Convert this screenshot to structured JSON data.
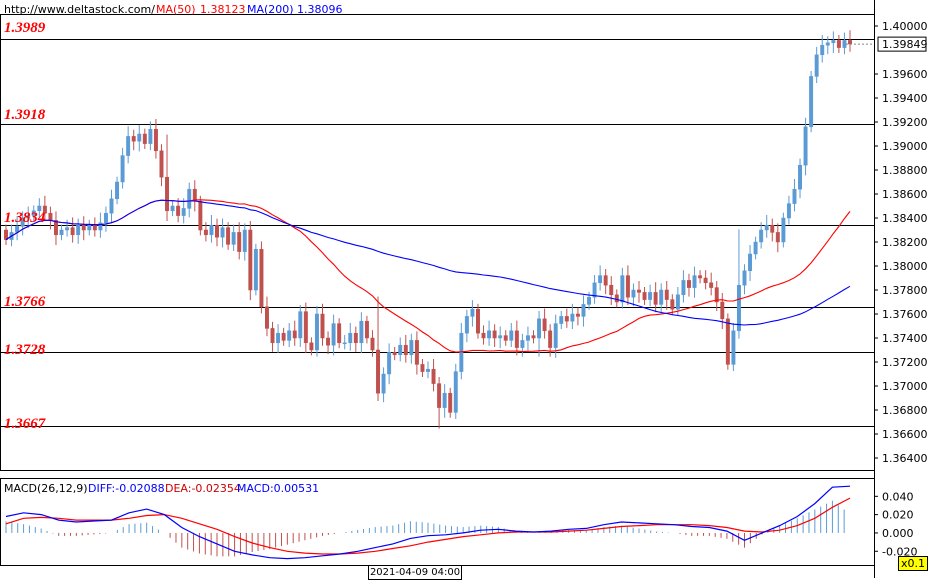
{
  "header": {
    "site": "http://www.deltastock.com/",
    "ma50_label": "MA(50)",
    "ma50_value": "1.38123",
    "ma200_label": "MA(200)",
    "ma200_value": "1.38096"
  },
  "macd_header": {
    "label": "MACD(26,12,9)",
    "diff": "DIFF:-0.02088",
    "dea": "DEA:-0.02354",
    "macd": "MACD:0.00531"
  },
  "current_price": "1.39849",
  "date_label": "2021-04-09 04:00",
  "zoom_label": "x0.1",
  "colors": {
    "up": "#5b9bd5",
    "down": "#c0504d",
    "ma50": "#ff0000",
    "ma200": "#0000ff",
    "level_text": "#ff0000"
  },
  "chart_data": [
    {
      "type": "candlestick",
      "y_ticks": [
        "1.40000",
        "1.39600",
        "1.39400",
        "1.39200",
        "1.39000",
        "1.38800",
        "1.38600",
        "1.38400",
        "1.38200",
        "1.38000",
        "1.37800",
        "1.37600",
        "1.37400",
        "1.37200",
        "1.37000",
        "1.36800",
        "1.36600",
        "1.36400"
      ],
      "ylim": [
        1.363,
        1.401
      ],
      "levels": [
        "1.3989",
        "1.3918",
        "1.3834",
        "1.3766",
        "1.3728",
        "1.3667"
      ],
      "close": [
        1.3822,
        1.3828,
        1.3833,
        1.384,
        1.3842,
        1.3846,
        1.385,
        1.3844,
        1.3838,
        1.3826,
        1.383,
        1.3832,
        1.3826,
        1.3834,
        1.383,
        1.3834,
        1.383,
        1.3836,
        1.3844,
        1.3856,
        1.387,
        1.3892,
        1.3908,
        1.3904,
        1.391,
        1.3902,
        1.3914,
        1.3896,
        1.3874,
        1.3846,
        1.385,
        1.3842,
        1.3848,
        1.3864,
        1.3854,
        1.383,
        1.3826,
        1.3834,
        1.3824,
        1.3832,
        1.3818,
        1.3828,
        1.3812,
        1.383,
        1.378,
        1.3814,
        1.3766,
        1.3748,
        1.3736,
        1.3744,
        1.3738,
        1.3746,
        1.374,
        1.3762,
        1.3736,
        1.373,
        1.376,
        1.374,
        1.3734,
        1.3752,
        1.3736,
        1.3736,
        1.3744,
        1.3736,
        1.3754,
        1.374,
        1.373,
        1.3694,
        1.371,
        1.3728,
        1.3726,
        1.3734,
        1.3726,
        1.3738,
        1.3718,
        1.3712,
        1.3714,
        1.3702,
        1.3682,
        1.3694,
        1.3678,
        1.3712,
        1.3744,
        1.3758,
        1.3764,
        1.3744,
        1.374,
        1.3746,
        1.374,
        1.3742,
        1.3738,
        1.3746,
        1.3732,
        1.3738,
        1.3742,
        1.374,
        1.3756,
        1.3746,
        1.3732,
        1.3752,
        1.3758,
        1.3754,
        1.376,
        1.3758,
        1.3768,
        1.3774,
        1.3786,
        1.3792,
        1.3784,
        1.3776,
        1.377,
        1.3792,
        1.3774,
        1.378,
        1.3778,
        1.3772,
        1.3778,
        1.3768,
        1.378,
        1.3772,
        1.3764,
        1.3776,
        1.3788,
        1.3782,
        1.3792,
        1.379,
        1.3786,
        1.3782,
        1.377,
        1.3756,
        1.3718,
        1.3746,
        1.3784,
        1.3796,
        1.381,
        1.382,
        1.383,
        1.3834,
        1.3828,
        1.382,
        1.384,
        1.3852,
        1.3864,
        1.3884,
        1.3916,
        1.3958,
        1.3976,
        1.3984,
        1.3986,
        1.3988,
        1.3982,
        1.3988,
        1.3985
      ]
    },
    {
      "type": "macd",
      "y_ticks": [
        "0.040",
        "0.020",
        "0.000",
        "-0.020"
      ],
      "ylim": [
        -0.035,
        0.06
      ],
      "series": [
        {
          "name": "DIFF",
          "values": [
            0.018,
            0.022,
            0.02,
            0.014,
            0.012,
            0.013,
            0.014,
            0.022,
            0.026,
            0.02,
            0.006,
            -0.004,
            -0.012,
            -0.02,
            -0.024,
            -0.027,
            -0.028,
            -0.027,
            -0.025,
            -0.023,
            -0.02,
            -0.016,
            -0.012,
            -0.006,
            -0.003,
            -0.002,
            0.0,
            0.003,
            0.004,
            0.002,
            0.001,
            0.002,
            0.004,
            0.005,
            0.009,
            0.012,
            0.011,
            0.01,
            0.009,
            0.007,
            0.006,
            0.002,
            -0.008,
            0.0,
            0.008,
            0.018,
            0.032,
            0.05,
            0.051
          ]
        },
        {
          "name": "DEA",
          "values": [
            0.01,
            0.016,
            0.017,
            0.016,
            0.014,
            0.014,
            0.014,
            0.016,
            0.019,
            0.02,
            0.016,
            0.01,
            0.004,
            -0.004,
            -0.011,
            -0.016,
            -0.02,
            -0.022,
            -0.023,
            -0.023,
            -0.022,
            -0.02,
            -0.017,
            -0.014,
            -0.01,
            -0.007,
            -0.004,
            -0.002,
            0.0,
            0.001,
            0.001,
            0.001,
            0.002,
            0.003,
            0.005,
            0.007,
            0.008,
            0.009,
            0.009,
            0.009,
            0.008,
            0.006,
            0.002,
            0.001,
            0.003,
            0.008,
            0.016,
            0.028,
            0.038
          ]
        }
      ]
    }
  ]
}
